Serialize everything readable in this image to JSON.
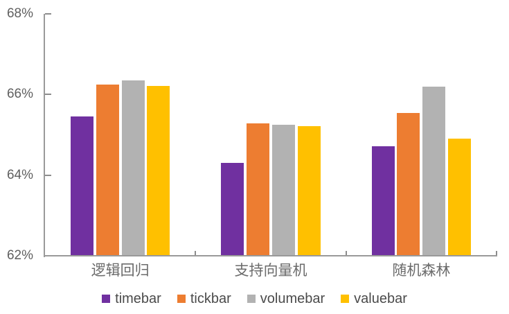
{
  "chart_data": {
    "type": "bar",
    "title": "",
    "categories": [
      "逻辑回归",
      "支持向量机",
      "随机森林"
    ],
    "series": [
      {
        "name": "timebar",
        "color": "#7030A0",
        "values": [
          65.45,
          64.3,
          64.72
        ]
      },
      {
        "name": "tickbar",
        "color": "#ED7D31",
        "values": [
          66.25,
          65.28,
          65.55
        ]
      },
      {
        "name": "volumebar",
        "color": "#B2B2B2",
        "values": [
          66.35,
          65.25,
          66.2
        ]
      },
      {
        "name": "valuebar",
        "color": "#FFC000",
        "values": [
          66.22,
          65.22,
          64.9
        ]
      }
    ],
    "ylim": [
      62,
      68
    ],
    "ytick_step": 2,
    "yticks": [
      "62%",
      "64%",
      "66%",
      "68%"
    ],
    "grid": false,
    "legend_position": "bottom",
    "axis_color": "#999999",
    "label_color": "#5f5f5f"
  }
}
